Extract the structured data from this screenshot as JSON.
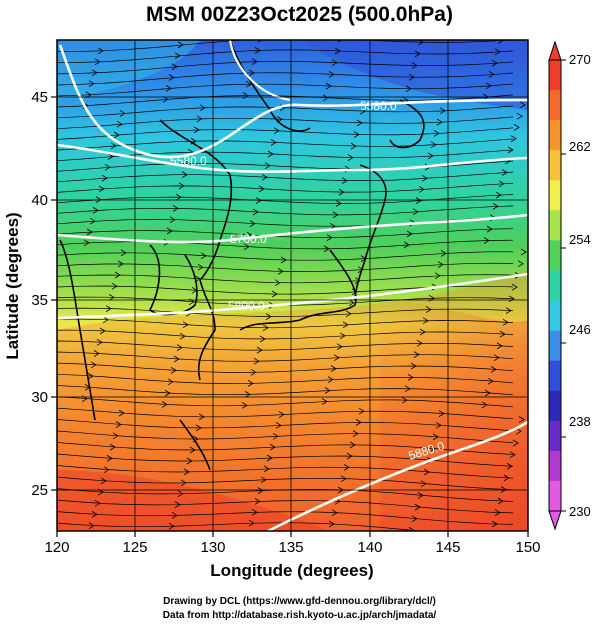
{
  "title": "MSM 00Z23Oct2025 (500.0hPa)",
  "xlabel": "Longitude (degrees)",
  "ylabel": "Latitude  (degrees)",
  "xticks": [
    "120",
    "125",
    "130",
    "135",
    "140",
    "145",
    "150"
  ],
  "yticks": [
    "25",
    "30",
    "35",
    "40",
    "45"
  ],
  "colorbar": {
    "min": 230,
    "max": 270,
    "labels": [
      "270",
      "262",
      "254",
      "246",
      "238",
      "230"
    ],
    "colors": [
      "#ef3e2a",
      "#f46a2c",
      "#f7942d",
      "#f7c23a",
      "#eff04a",
      "#a6e44c",
      "#52d25a",
      "#2fd2a2",
      "#33c9e6",
      "#3a8ee8",
      "#2f4fdb",
      "#2a2ab8",
      "#6a2ac8",
      "#b23ad0",
      "#e05ae2"
    ]
  },
  "contours": [
    {
      "label": "5580.0",
      "lat_at_mid": 44.5
    },
    {
      "label": "5580.0",
      "lat_at_mid": 41.0
    },
    {
      "label": "5700.0",
      "lat_at_mid": 37.8
    },
    {
      "label": "5800.0",
      "lat_at_mid": 34.8
    },
    {
      "label": "5880.0",
      "lat_at_mid": 26.5
    }
  ],
  "credits": [
    "Drawing by DCL (https://www.gfd-dennou.org/library/dcl/)",
    "Data from http://database.rish.kyoto-u.ac.jp/arch/jmadata/"
  ]
}
